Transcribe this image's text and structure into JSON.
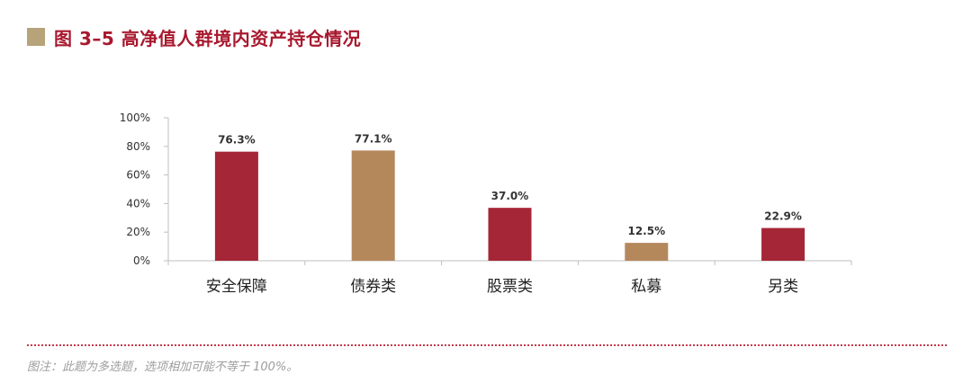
{
  "header": {
    "figure_label": "图 3–5 高净值人群境内资产持仓情况"
  },
  "chart_data": {
    "type": "bar",
    "categories": [
      "安全保障",
      "债券类",
      "股票类",
      "私募",
      "另类"
    ],
    "values": [
      76.3,
      77.1,
      37.0,
      12.5,
      22.9
    ],
    "value_labels": [
      "76.3%",
      "77.1%",
      "37.0%",
      "12.5%",
      "22.9%"
    ],
    "yticks": [
      "0%",
      "20%",
      "40%",
      "60%",
      "80%",
      "100%"
    ],
    "ylim": [
      0,
      100
    ],
    "bar_colors": [
      "#a52636",
      "#b5885c",
      "#a52636",
      "#b5885c",
      "#a52636"
    ],
    "grid": false,
    "legend": "none"
  },
  "footer": {
    "note": "图注：此题为多选题，选项相加可能不等于 100%。"
  }
}
